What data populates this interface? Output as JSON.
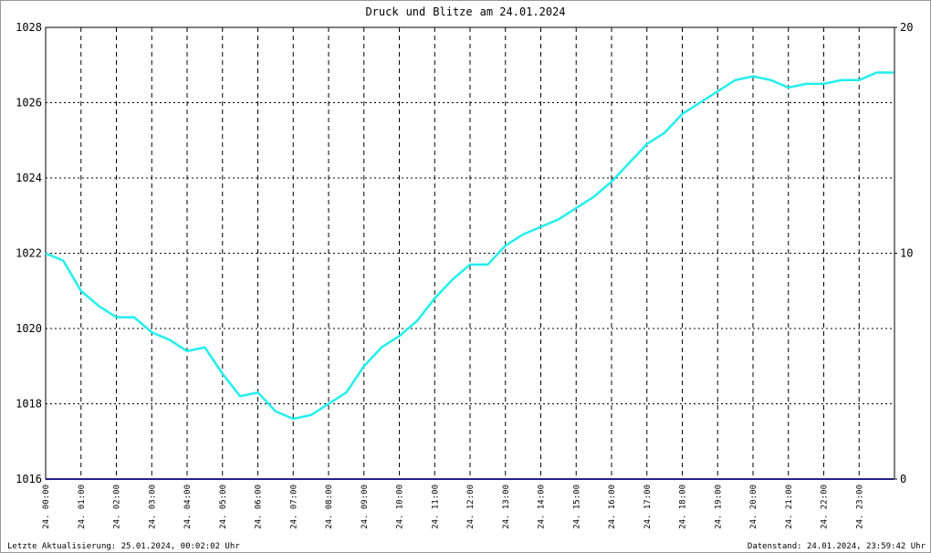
{
  "chart_data": {
    "type": "line",
    "title_connector": "und",
    "title_suffix": "am 24.01.2024",
    "footer_left": "Letzte Aktualisierung: 25.01.2024, 00:02:02 Uhr",
    "footer_right": "Datenstand: 24.01.2024, 23:59:42 Uhr",
    "x": [
      0,
      0.5,
      1,
      1.5,
      2,
      2.5,
      3,
      3.5,
      4,
      4.5,
      5,
      5.5,
      6,
      6.5,
      7,
      7.5,
      8,
      8.5,
      9,
      9.5,
      10,
      10.5,
      11,
      11.5,
      12,
      12.5,
      13,
      13.5,
      14,
      14.5,
      15,
      15.5,
      16,
      16.5,
      17,
      17.5,
      18,
      18.5,
      19,
      19.5,
      20,
      20.5,
      21,
      21.5,
      22,
      22.5,
      23,
      23.5,
      23.98
    ],
    "xlim": [
      0,
      24
    ],
    "xticks": [
      {
        "value": 0,
        "label": "24. 00:00"
      },
      {
        "value": 1,
        "label": "24. 01:00"
      },
      {
        "value": 2,
        "label": "24. 02:00"
      },
      {
        "value": 3,
        "label": "24. 03:00"
      },
      {
        "value": 4,
        "label": "24. 04:00"
      },
      {
        "value": 5,
        "label": "24. 05:00"
      },
      {
        "value": 6,
        "label": "24. 06:00"
      },
      {
        "value": 7,
        "label": "24. 07:00"
      },
      {
        "value": 8,
        "label": "24. 08:00"
      },
      {
        "value": 9,
        "label": "24. 09:00"
      },
      {
        "value": 10,
        "label": "24. 10:00"
      },
      {
        "value": 11,
        "label": "24. 11:00"
      },
      {
        "value": 12,
        "label": "24. 12:00"
      },
      {
        "value": 13,
        "label": "24. 13:00"
      },
      {
        "value": 14,
        "label": "24. 14:00"
      },
      {
        "value": 15,
        "label": "24. 15:00"
      },
      {
        "value": 16,
        "label": "24. 16:00"
      },
      {
        "value": 17,
        "label": "24. 17:00"
      },
      {
        "value": 18,
        "label": "24. 18:00"
      },
      {
        "value": 19,
        "label": "24. 19:00"
      },
      {
        "value": 20,
        "label": "24. 20:00"
      },
      {
        "value": 21,
        "label": "24. 21:00"
      },
      {
        "value": 22,
        "label": "24. 22:00"
      },
      {
        "value": 23,
        "label": "24. 23:00"
      }
    ],
    "ylim": [
      1016,
      1028
    ],
    "yticks": [
      1016,
      1018,
      1020,
      1022,
      1024,
      1026,
      1028
    ],
    "y2lim": [
      0,
      20
    ],
    "y2ticks": [
      0,
      10,
      20
    ],
    "grid": true,
    "series": [
      {
        "name": "Druck",
        "color": "#22eeee",
        "values": [
          1022.0,
          1021.8,
          1021.0,
          1020.6,
          1020.3,
          1020.3,
          1019.9,
          1019.7,
          1019.4,
          1019.5,
          1018.8,
          1018.2,
          1018.3,
          1017.8,
          1017.6,
          1017.7,
          1018.0,
          1018.3,
          1019.0,
          1019.5,
          1019.8,
          1020.2,
          1020.8,
          1021.3,
          1021.7,
          1021.7,
          1022.2,
          1022.5,
          1022.7,
          1022.9,
          1023.2,
          1023.5,
          1023.9,
          1024.4,
          1024.9,
          1025.2,
          1025.7,
          1026.0,
          1026.3,
          1026.6,
          1026.7,
          1026.6,
          1026.4,
          1026.5,
          1026.5,
          1026.6,
          1026.6,
          1026.8,
          1026.8
        ]
      },
      {
        "name": "Blitze",
        "color": "#222288",
        "axis": "y2",
        "values": [
          0,
          0,
          0,
          0,
          0,
          0,
          0,
          0,
          0,
          0,
          0,
          0,
          0,
          0,
          0,
          0,
          0,
          0,
          0,
          0,
          0,
          0,
          0,
          0,
          0,
          0,
          0,
          0,
          0,
          0,
          0,
          0,
          0,
          0,
          0,
          0,
          0,
          0,
          0,
          0,
          0,
          0,
          0,
          0,
          0,
          0,
          0,
          0,
          0
        ]
      }
    ]
  }
}
